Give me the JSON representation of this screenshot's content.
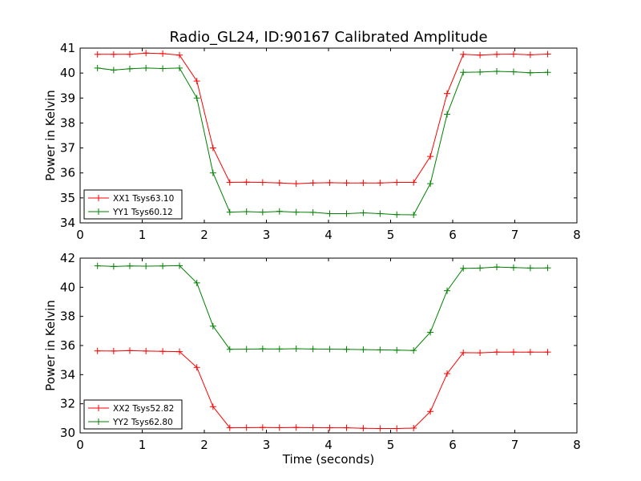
{
  "figure": {
    "title": "Radio_GL24, ID:90167 Calibrated Amplitude"
  },
  "chart_data": [
    {
      "type": "line",
      "ylabel": "Power in Kelvin",
      "xlabel": "",
      "xlim": [
        0,
        8
      ],
      "ylim": [
        34,
        41
      ],
      "xticks": [
        0,
        1,
        2,
        3,
        4,
        5,
        6,
        7,
        8
      ],
      "yticks": [
        34,
        35,
        36,
        37,
        38,
        39,
        40,
        41
      ],
      "grid": false,
      "legend_position": "lower-left",
      "x": [
        0.28,
        0.54,
        0.8,
        1.06,
        1.33,
        1.6,
        1.88,
        2.14,
        2.41,
        2.68,
        2.94,
        3.21,
        3.48,
        3.75,
        4.02,
        4.29,
        4.56,
        4.83,
        5.1,
        5.37,
        5.64,
        5.91,
        6.17,
        6.44,
        6.71,
        6.98,
        7.25,
        7.53
      ],
      "series": [
        {
          "name": "XX1 Tsys63.10",
          "color": "#ff0000",
          "values": [
            40.75,
            40.75,
            40.75,
            40.8,
            40.78,
            40.72,
            39.68,
            37.0,
            35.62,
            35.63,
            35.62,
            35.6,
            35.57,
            35.6,
            35.61,
            35.6,
            35.6,
            35.6,
            35.62,
            35.62,
            36.66,
            39.18,
            40.75,
            40.72,
            40.75,
            40.76,
            40.73,
            40.76
          ]
        },
        {
          "name": "YY1 Tsys60.12",
          "color": "#008000",
          "values": [
            40.2,
            40.12,
            40.17,
            40.2,
            40.18,
            40.2,
            39.0,
            36.0,
            34.43,
            34.45,
            34.43,
            34.46,
            34.43,
            34.42,
            34.37,
            34.37,
            34.4,
            34.37,
            34.33,
            34.32,
            35.57,
            38.35,
            40.03,
            40.04,
            40.07,
            40.05,
            40.01,
            40.03
          ]
        }
      ]
    },
    {
      "type": "line",
      "ylabel": "Power in Kelvin",
      "xlabel": "Time (seconds)",
      "xlim": [
        0,
        8
      ],
      "ylim": [
        30,
        42
      ],
      "xticks": [
        0,
        1,
        2,
        3,
        4,
        5,
        6,
        7,
        8
      ],
      "yticks": [
        30,
        32,
        34,
        36,
        38,
        40,
        42
      ],
      "grid": false,
      "legend_position": "lower-left",
      "x": [
        0.28,
        0.54,
        0.8,
        1.06,
        1.33,
        1.6,
        1.88,
        2.14,
        2.41,
        2.68,
        2.94,
        3.21,
        3.48,
        3.75,
        4.02,
        4.29,
        4.56,
        4.83,
        5.1,
        5.37,
        5.64,
        5.91,
        6.17,
        6.44,
        6.71,
        6.98,
        7.25,
        7.53
      ],
      "series": [
        {
          "name": "XX2 Tsys52.82",
          "color": "#ff0000",
          "values": [
            35.63,
            35.62,
            35.65,
            35.62,
            35.6,
            35.58,
            34.5,
            31.8,
            30.35,
            30.36,
            30.37,
            30.36,
            30.37,
            30.36,
            30.35,
            30.35,
            30.32,
            30.3,
            30.3,
            30.33,
            31.47,
            34.07,
            35.51,
            35.5,
            35.55,
            35.55,
            35.55,
            35.55
          ]
        },
        {
          "name": "YY2 Tsys62.80",
          "color": "#008000",
          "values": [
            41.47,
            41.43,
            41.46,
            41.45,
            41.46,
            41.48,
            40.3,
            37.33,
            35.74,
            35.75,
            35.77,
            35.76,
            35.78,
            35.76,
            35.75,
            35.74,
            35.72,
            35.7,
            35.68,
            35.66,
            36.91,
            39.76,
            41.3,
            41.32,
            41.39,
            41.35,
            41.32,
            41.33
          ]
        }
      ]
    }
  ]
}
